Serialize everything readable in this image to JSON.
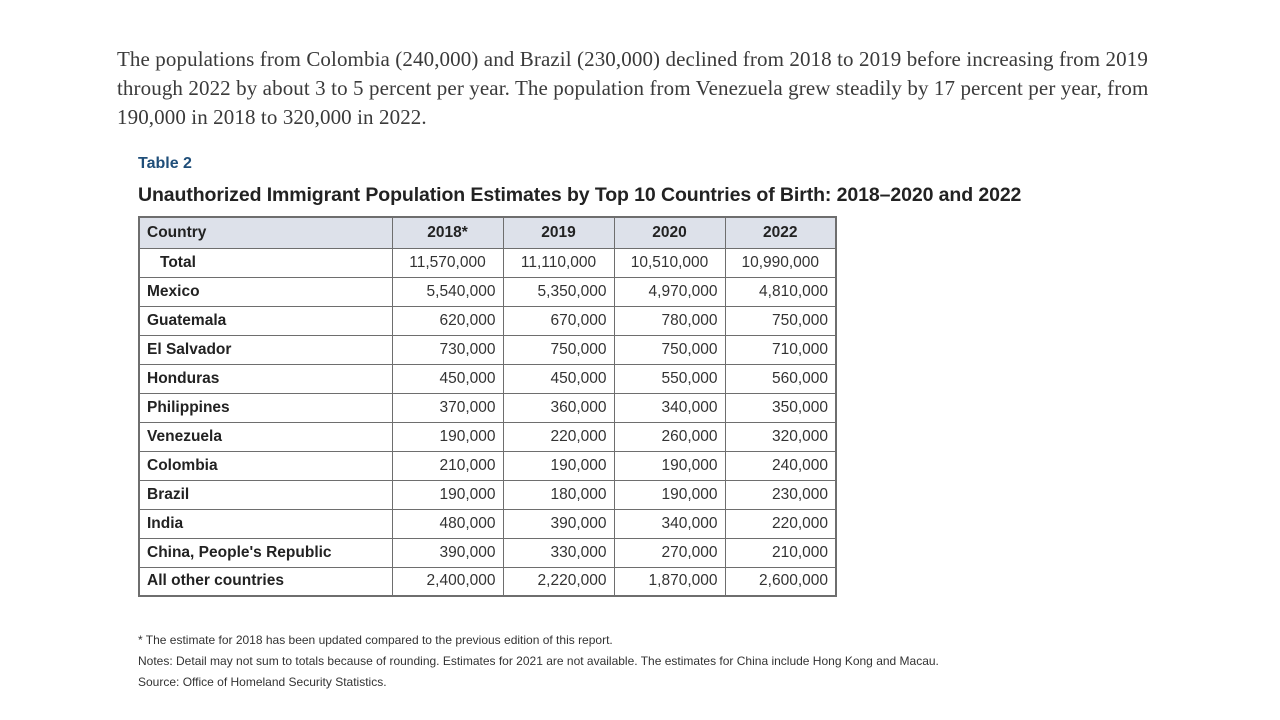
{
  "intro_paragraph": "The populations from Colombia (240,000) and Brazil (230,000) declined from 2018 to 2019 before increasing from 2019 through 2022 by about 3 to 5 percent per year. The population from Venezuela grew steadily by 17 percent per year, from 190,000 in 2018 to 320,000 in 2022.",
  "table": {
    "label": "Table 2",
    "title": "Unauthorized Immigrant Population Estimates by Top 10 Countries of Birth: 2018–2020 and 2022",
    "headers": [
      "Country",
      "2018*",
      "2019",
      "2020",
      "2022"
    ],
    "rows": [
      {
        "country": "Total",
        "values": [
          "11,570,000",
          "11,110,000",
          "10,510,000",
          "10,990,000"
        ]
      },
      {
        "country": "Mexico",
        "values": [
          "5,540,000",
          "5,350,000",
          "4,970,000",
          "4,810,000"
        ]
      },
      {
        "country": "Guatemala",
        "values": [
          "620,000",
          "670,000",
          "780,000",
          "750,000"
        ]
      },
      {
        "country": "El Salvador",
        "values": [
          "730,000",
          "750,000",
          "750,000",
          "710,000"
        ]
      },
      {
        "country": "Honduras",
        "values": [
          "450,000",
          "450,000",
          "550,000",
          "560,000"
        ]
      },
      {
        "country": "Philippines",
        "values": [
          "370,000",
          "360,000",
          "340,000",
          "350,000"
        ]
      },
      {
        "country": "Venezuela",
        "values": [
          "190,000",
          "220,000",
          "260,000",
          "320,000"
        ]
      },
      {
        "country": "Colombia",
        "values": [
          "210,000",
          "190,000",
          "190,000",
          "240,000"
        ]
      },
      {
        "country": "Brazil",
        "values": [
          "190,000",
          "180,000",
          "190,000",
          "230,000"
        ]
      },
      {
        "country": "India",
        "values": [
          "480,000",
          "390,000",
          "340,000",
          "220,000"
        ]
      },
      {
        "country": "China, People's Republic",
        "values": [
          "390,000",
          "330,000",
          "270,000",
          "210,000"
        ]
      },
      {
        "country": "All other countries",
        "values": [
          "2,400,000",
          "2,220,000",
          "1,870,000",
          "2,600,000"
        ]
      }
    ]
  },
  "footnotes": {
    "asterisk_note": "* The estimate for 2018 has been updated compared to the previous edition of this report.",
    "notes": "Notes: Detail may not sum to totals because of rounding. Estimates for 2021 are not available. The estimates for China include Hong Kong and Macau.",
    "source": "Source: Office of Homeland Security Statistics."
  },
  "colors": {
    "table_label": "#1f4e79",
    "header_background": "#dde1ea",
    "border": "#6e6e6e"
  }
}
